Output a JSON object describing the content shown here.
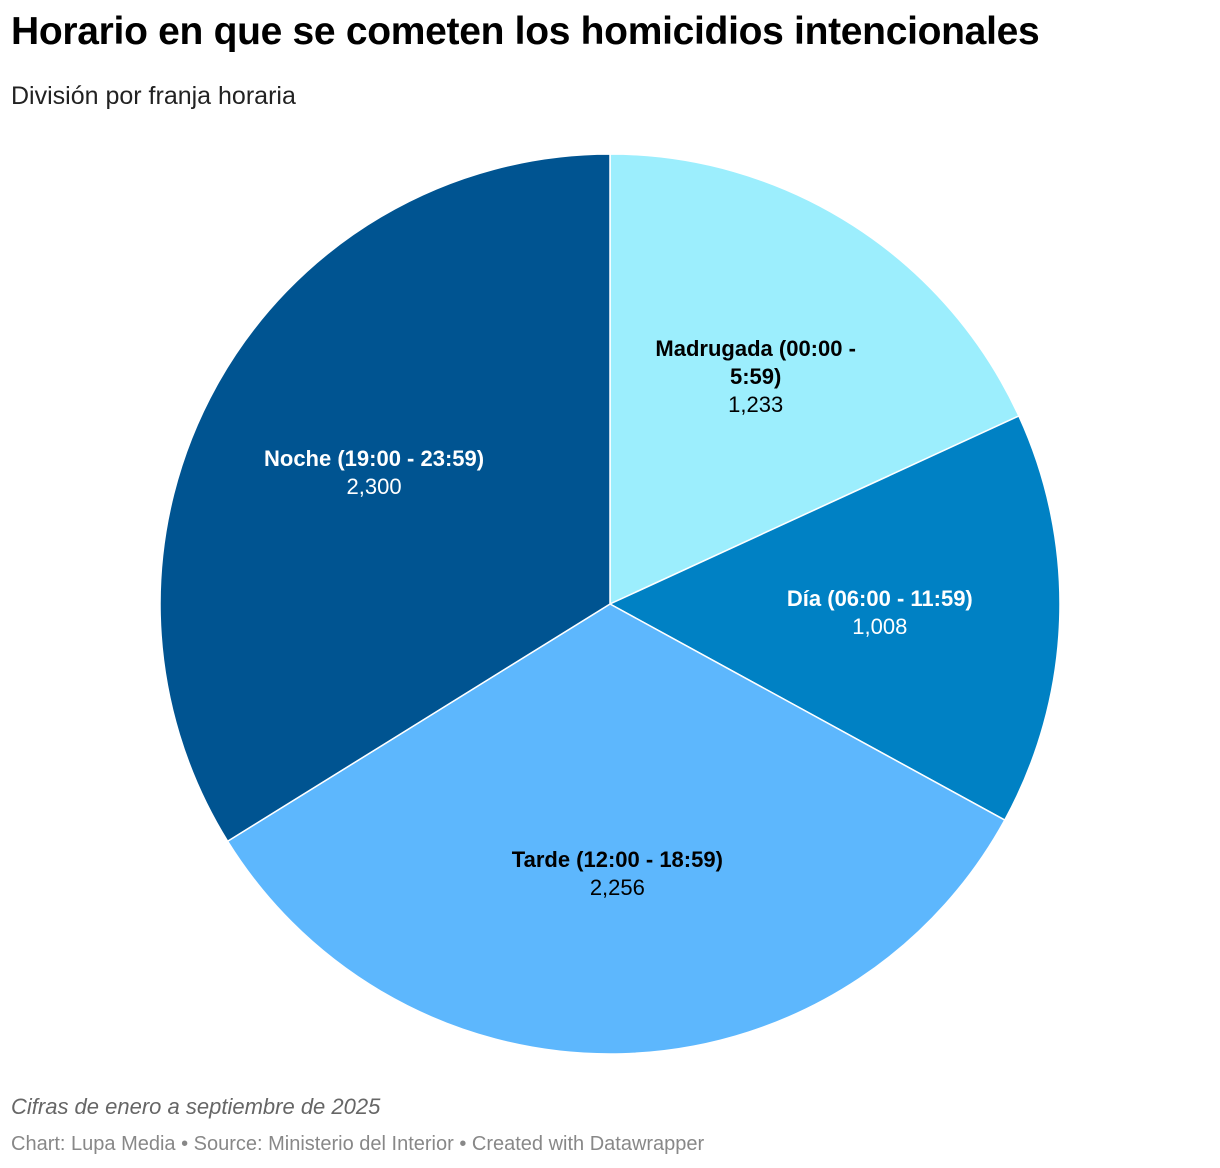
{
  "title": "Horario en que se cometen los homicidios intencionales",
  "subtitle": "División por franja horaria",
  "note": "Cifras de enero a septiembre de 2025",
  "credits": "Chart: Lupa Media • Source: Ministerio del Interior • Created with Datawrapper",
  "chart_data": {
    "type": "pie",
    "title": "Horario en que se cometen los homicidios intencionales",
    "subtitle": "División por franja horaria",
    "categories": [
      "Madrugada (00:00 - 5:59)",
      "Día (06:00 - 11:59)",
      "Tarde (12:00 - 18:59)",
      "Noche (19:00 - 23:59)"
    ],
    "values": [
      1233,
      1008,
      2256,
      2300
    ],
    "value_labels": [
      "1,233",
      "1,008",
      "2,256",
      "2,300"
    ],
    "colors": [
      "#9ceefd",
      "#0081c4",
      "#5db7fd",
      "#005491"
    ],
    "label_colors": [
      "#000000",
      "#ffffff",
      "#000000",
      "#ffffff"
    ],
    "start_angle_deg": 0,
    "direction": "clockwise"
  }
}
